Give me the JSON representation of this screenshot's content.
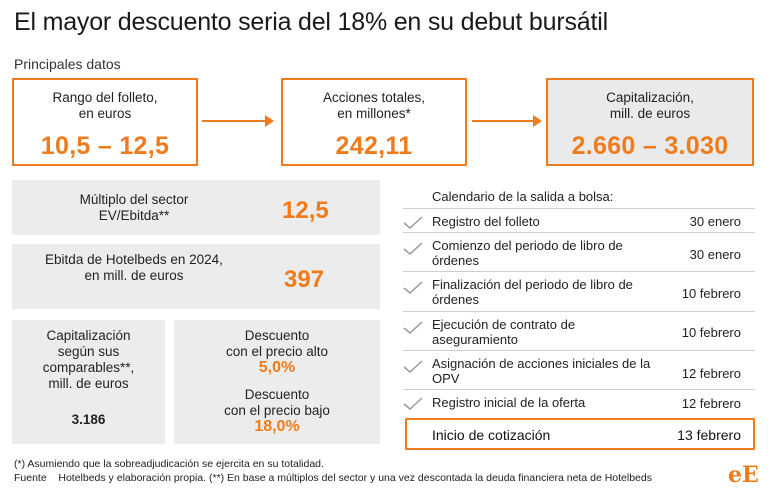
{
  "title": "El mayor descuento seria del 18% en su debut bursátil",
  "subtitle": "Principales datos",
  "cards": [
    {
      "label_line1": "Rango del folleto,",
      "label_line2": "en euros",
      "value": "10,5 – 12,5"
    },
    {
      "label_line1": "Acciones totales,",
      "label_line2": "en millones*",
      "value": "242,11"
    },
    {
      "label_line1": "Capitalización,",
      "label_line2": "mill. de euros",
      "value": "2.660 – 3.030"
    }
  ],
  "multiple": {
    "label_line1": "Múltiplo del sector",
    "label_line2": "EV/Ebitda**",
    "value": "12,5"
  },
  "ebitda": {
    "label_line1": "Ebitda de Hotelbeds en 2024,",
    "label_line2": "en mill. de euros",
    "value": "397"
  },
  "comparables": {
    "label_line1": "Capitalización",
    "label_line2": "según sus",
    "label_line3": "comparables**,",
    "label_line4": "mill. de euros",
    "value": "3.186"
  },
  "discounts": {
    "high_line1": "Descuento",
    "high_line2": "con el precio alto",
    "high_value": "5,0%",
    "low_line1": "Descuento",
    "low_line2": "con el precio bajo",
    "low_value": "18,0%"
  },
  "calendar": {
    "title": "Calendario de la salida a bolsa:",
    "rows": [
      {
        "event_line1": "Registro del folleto",
        "event_line2": "",
        "date": "30 enero"
      },
      {
        "event_line1": "Comienzo del periodo de libro de",
        "event_line2": "órdenes",
        "date": "30 enero"
      },
      {
        "event_line1": "Finalización del periodo de libro de",
        "event_line2": "órdenes",
        "date": "10 febrero"
      },
      {
        "event_line1": "Ejecución de contrato de",
        "event_line2": "aseguramiento",
        "date": "10 febrero"
      },
      {
        "event_line1": "Asignación de acciones iniciales de la",
        "event_line2": "OPV",
        "date": "12 febrero"
      },
      {
        "event_line1": "Registro inicial de la oferta",
        "event_line2": "",
        "date": "12 febrero"
      }
    ],
    "highlight": {
      "event": "Inicio de cotización",
      "date": "13 febrero"
    }
  },
  "notes": {
    "note1": "(*) Asumiendo que la sobreadjudicación se ejercita en su totalidad.",
    "source": "Fuente    Hotelbeds y elaboración propia. (**) En base a múltiplos del sector y una vez descontada la deuda financiera neta de Hotelbeds"
  },
  "logo": "eE",
  "colors": {
    "accent": "#f07b1a",
    "panel": "#ececec",
    "check": "#9a9a9a"
  },
  "chart_data": {
    "type": "table",
    "title": "El mayor descuento seria del 18% en su debut bursátil",
    "subtitle": "Principales datos",
    "key_figures": [
      {
        "label": "Rango del folleto, en euros",
        "low": 10.5,
        "high": 12.5
      },
      {
        "label": "Acciones totales, en millones*",
        "value": 242.11
      },
      {
        "label": "Capitalización, mill. de euros",
        "low": 2660,
        "high": 3030
      },
      {
        "label": "Múltiplo del sector EV/Ebitda**",
        "value": 12.5
      },
      {
        "label": "Ebitda de Hotelbeds en 2024, en mill. de euros",
        "value": 397
      },
      {
        "label": "Capitalización según sus comparables**, mill. de euros",
        "value": 3186
      },
      {
        "label": "Descuento con el precio alto",
        "value": 5.0,
        "unit": "%"
      },
      {
        "label": "Descuento con el precio bajo",
        "value": 18.0,
        "unit": "%"
      }
    ],
    "calendar": [
      {
        "event": "Registro del folleto",
        "date": "30 enero"
      },
      {
        "event": "Comienzo del periodo de libro de órdenes",
        "date": "30 enero"
      },
      {
        "event": "Finalización del periodo de libro de órdenes",
        "date": "10 febrero"
      },
      {
        "event": "Ejecución de contrato de aseguramiento",
        "date": "10 febrero"
      },
      {
        "event": "Asignación de acciones iniciales de la OPV",
        "date": "12 febrero"
      },
      {
        "event": "Registro inicial de la oferta",
        "date": "12 febrero"
      },
      {
        "event": "Inicio de cotización",
        "date": "13 febrero"
      }
    ]
  }
}
